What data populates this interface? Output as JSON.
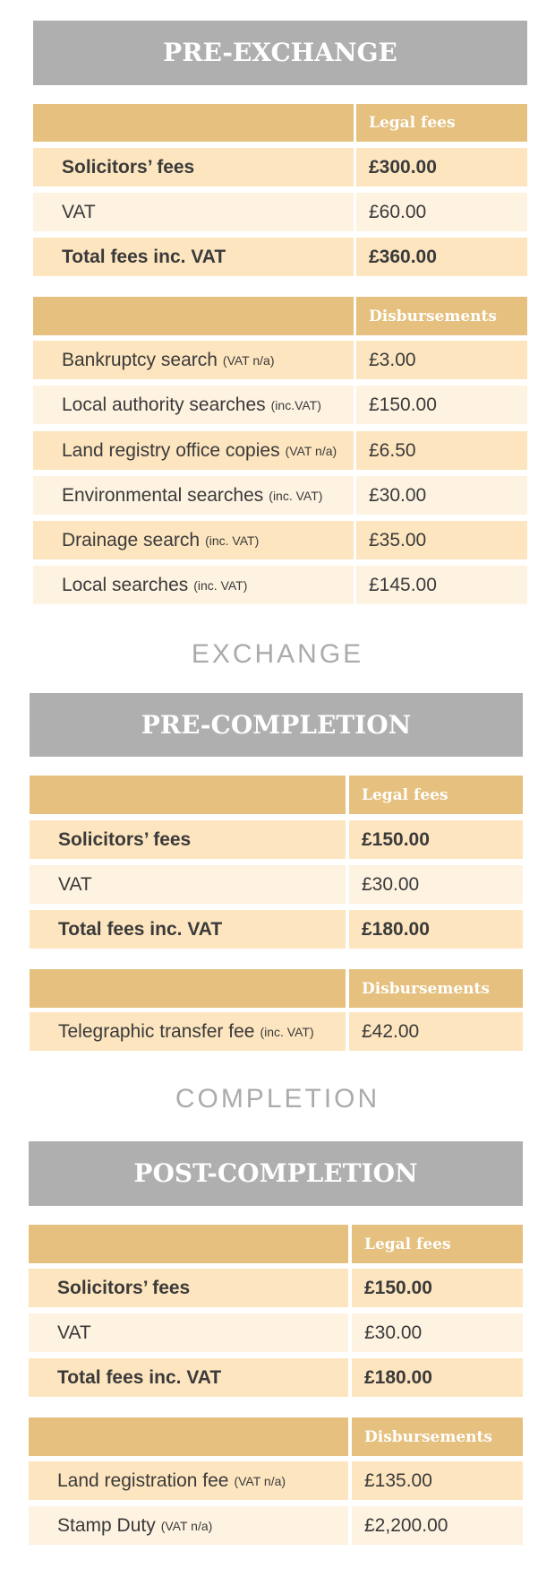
{
  "stages": {
    "pre_exchange": {
      "title": "PRE-EXCHANGE",
      "legal": {
        "header": "Legal fees",
        "rows": [
          {
            "label": "Solicitors’ fees",
            "value": "£300.00"
          },
          {
            "label": "VAT",
            "value": "£60.00"
          },
          {
            "label": "Total fees inc. VAT",
            "value": "£360.00"
          }
        ]
      },
      "disbursements": {
        "header": "Disbursements",
        "rows": [
          {
            "label": "Bankruptcy search",
            "note": "(VAT n/a)",
            "value": "£3.00"
          },
          {
            "label": "Local authority searches",
            "note": "(inc.VAT)",
            "value": "£150.00"
          },
          {
            "label": "Land registry office copies",
            "note": "(VAT n/a)",
            "value": "£6.50"
          },
          {
            "label": "Environmental searches",
            "note": "(inc. VAT)",
            "value": "£30.00"
          },
          {
            "label": "Drainage search",
            "note": "(inc. VAT)",
            "value": "£35.00"
          },
          {
            "label": "Local searches",
            "note": "(inc. VAT)",
            "value": "£145.00"
          }
        ]
      }
    },
    "exchange_label": "EXCHANGE",
    "pre_completion": {
      "title": "PRE-COMPLETION",
      "legal": {
        "header": "Legal fees",
        "rows": [
          {
            "label": "Solicitors’ fees",
            "value": "£150.00"
          },
          {
            "label": "VAT",
            "value": "£30.00"
          },
          {
            "label": "Total fees inc. VAT",
            "value": "£180.00"
          }
        ]
      },
      "disbursements": {
        "header": "Disbursements",
        "rows": [
          {
            "label": "Telegraphic transfer fee",
            "note": "(inc. VAT)",
            "value": "£42.00"
          }
        ]
      }
    },
    "completion_label": "COMPLETION",
    "post_completion": {
      "title": "POST-COMPLETION",
      "legal": {
        "header": "Legal fees",
        "rows": [
          {
            "label": "Solicitors’ fees",
            "value": "£150.00"
          },
          {
            "label": "VAT",
            "value": "£30.00"
          },
          {
            "label": "Total fees inc. VAT",
            "value": "£180.00"
          }
        ]
      },
      "disbursements": {
        "header": "Disbursements",
        "rows": [
          {
            "label": "Land registration fee",
            "note": "(VAT n/a)",
            "value": "£135.00"
          },
          {
            "label": "Stamp Duty",
            "note": "(VAT n/a)",
            "value": "£2,200.00"
          }
        ]
      }
    }
  }
}
